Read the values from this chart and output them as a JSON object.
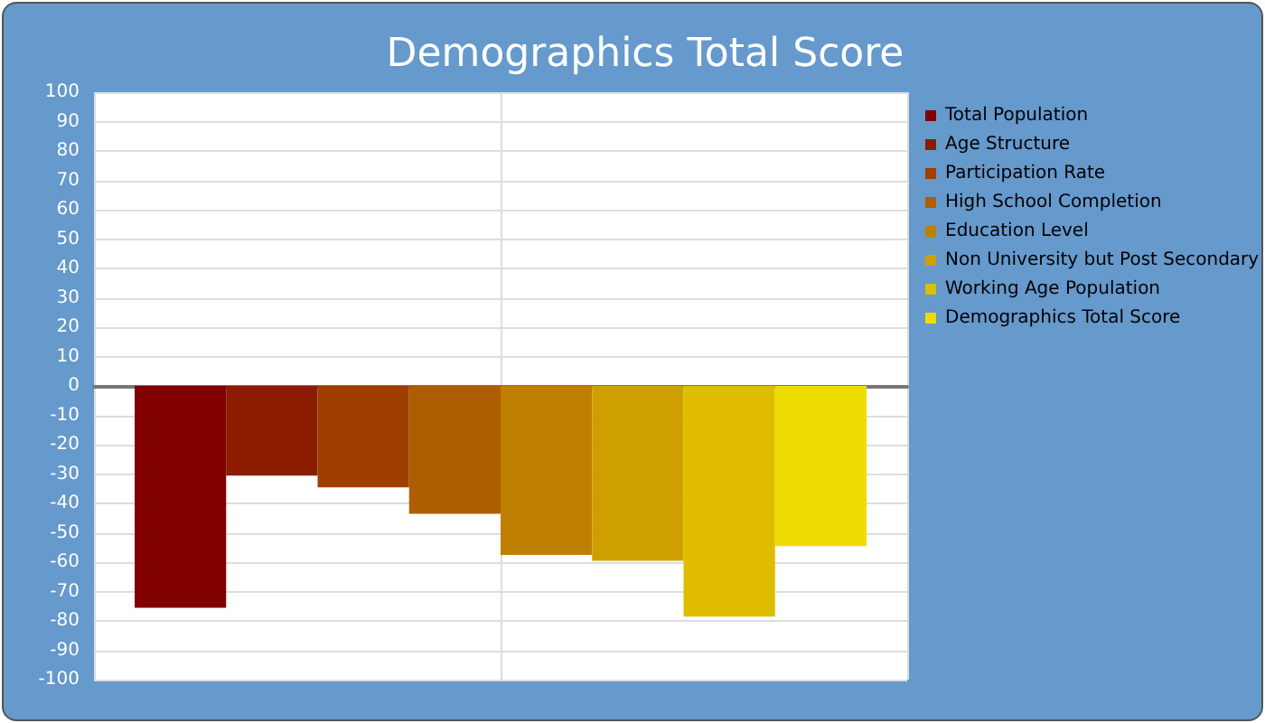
{
  "chart_data": {
    "type": "bar",
    "title": "Demographics Total Score",
    "categories": [
      null
    ],
    "series": [
      {
        "name": "Total Population",
        "color": "#800000",
        "values": [
          -75.5
        ]
      },
      {
        "name": "Age Structure",
        "color": "#8c1c00",
        "values": [
          -30.5
        ]
      },
      {
        "name": "Participation Rate",
        "color": "#9e3f00",
        "values": [
          -34.5
        ]
      },
      {
        "name": "High School Completion",
        "color": "#ae5e00",
        "values": [
          -43.5
        ]
      },
      {
        "name": "Education Level",
        "color": "#bf7f00",
        "values": [
          -57.5
        ]
      },
      {
        "name": "Non University but Post Secondary",
        "color": "#cf9f00",
        "values": [
          -59.5
        ]
      },
      {
        "name": "Working Age Population",
        "color": "#dfbc00",
        "values": [
          -78.5
        ]
      },
      {
        "name": "Demographics Total Score",
        "color": "#eedd00",
        "values": [
          -54.5
        ]
      }
    ],
    "ylim": [
      -100,
      100
    ],
    "yticks": [
      -100,
      -90,
      -80,
      -70,
      -60,
      -50,
      -40,
      -30,
      -20,
      -10,
      0,
      10,
      20,
      30,
      40,
      50,
      60,
      70,
      80,
      90,
      100
    ],
    "grid": true,
    "legend": "right"
  }
}
